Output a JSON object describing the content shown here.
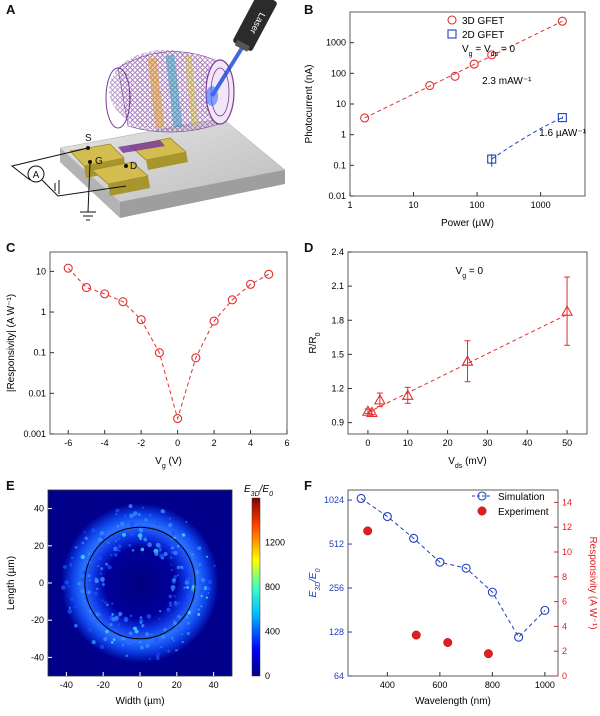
{
  "panel_labels": [
    "A",
    "B",
    "C",
    "D",
    "E",
    "F"
  ],
  "illustration": {
    "laser_label": "Laser",
    "terminals": [
      "S",
      "G",
      "D"
    ],
    "ammeter_symbol": "A",
    "colors": {
      "substrate": "#c9c9c9",
      "electrode": "#c9b84a",
      "graphene": "#7a3a9a",
      "laser": "#1f4fd8"
    }
  },
  "chart_data": [
    {
      "panel": "B",
      "type": "scatter",
      "xscale": "log",
      "yscale": "log",
      "xlabel": "Power (µW)",
      "ylabel": "Photocurrent (nA)",
      "xlim": [
        1,
        5000
      ],
      "ylim": [
        0.01,
        10000
      ],
      "xticks": [
        "1",
        "10",
        "100",
        "1000"
      ],
      "yticks": [
        "0.01",
        "0.1",
        "1",
        "10",
        "100",
        "1000"
      ],
      "legend": [
        "3D GFET",
        "2D GFET"
      ],
      "legend_note": "V_g = V_ds = 0",
      "series": [
        {
          "name": "3D GFET",
          "color": "#e03030",
          "marker": "circle",
          "x": [
            1.7,
            18,
            45,
            90,
            170,
            2200
          ],
          "y": [
            3.5,
            40,
            80,
            200,
            400,
            5000
          ]
        },
        {
          "name": "2D GFET",
          "color": "#2040c0",
          "marker": "square",
          "x": [
            170,
            2200
          ],
          "y": [
            0.16,
            3.6
          ],
          "yerr": [
            0.07,
            0.4
          ]
        }
      ],
      "annotations": [
        {
          "text": "2.3 mAW⁻¹",
          "x": 120,
          "y": 45
        },
        {
          "text": "1.6 µAW⁻¹",
          "x": 950,
          "y": 0.9
        }
      ]
    },
    {
      "panel": "C",
      "type": "scatter",
      "yscale": "log",
      "xlabel": "V_g (V)",
      "ylabel": "|Responsivity| (A W⁻¹)",
      "xlim": [
        -7,
        6
      ],
      "ylim": [
        0.001,
        30
      ],
      "xticks": [
        "-6",
        "-4",
        "-2",
        "0",
        "2",
        "4",
        "6"
      ],
      "yticks": [
        "0.001",
        "0.01",
        "0.1",
        "1",
        "10"
      ],
      "series": [
        {
          "color": "#e03030",
          "marker": "circle",
          "x": [
            -6,
            -5,
            -4,
            -3,
            -2,
            -1,
            0,
            1,
            2,
            3,
            4,
            5
          ],
          "y": [
            12,
            4,
            2.8,
            1.8,
            0.65,
            0.1,
            0.0024,
            0.075,
            0.6,
            2,
            4.8,
            8.5
          ]
        }
      ]
    },
    {
      "panel": "D",
      "type": "scatter",
      "xlabel": "V_ds (mV)",
      "ylabel": "R/R_0",
      "xlim": [
        -5,
        55
      ],
      "ylim": [
        0.8,
        2.4
      ],
      "xticks": [
        "0",
        "10",
        "20",
        "30",
        "40",
        "50"
      ],
      "yticks": [
        "0.9",
        "1.2",
        "1.5",
        "1.8",
        "2.1",
        "2.4"
      ],
      "note": "V_g = 0",
      "series": [
        {
          "color": "#e03030",
          "marker": "triangle",
          "x": [
            0,
            1,
            3,
            10,
            25,
            50
          ],
          "y": [
            1.0,
            0.99,
            1.1,
            1.14,
            1.44,
            1.88
          ],
          "yerr": [
            0.02,
            0.02,
            0.06,
            0.07,
            0.18,
            0.3
          ]
        }
      ]
    },
    {
      "panel": "E",
      "type": "heatmap",
      "xlabel": "Width (µm)",
      "ylabel": "Length (µm)",
      "xlim": [
        -50,
        50
      ],
      "ylim": [
        -50,
        50
      ],
      "xticks": [
        "-40",
        "-20",
        "0",
        "20",
        "40"
      ],
      "yticks": [
        "40",
        "20",
        "0",
        "-20",
        "-40"
      ],
      "colorbar_title": "E_3D/E_0",
      "colorbar_ticks": [
        "0",
        "400",
        "800",
        "1200"
      ],
      "colorbar_range": [
        0,
        1600
      ],
      "ring_radius": 30
    },
    {
      "panel": "F",
      "type": "line",
      "xlabel": "Wavelength (nm)",
      "ylabel": "E_3D/E_0",
      "y2label": "Responsivity (A W⁻¹)",
      "xlim": [
        250,
        1050
      ],
      "ylim": [
        64,
        1200
      ],
      "yscale": "log",
      "y2lim": [
        0,
        15
      ],
      "xticks": [
        "400",
        "600",
        "800",
        "1000"
      ],
      "yticks": [
        "64",
        "128",
        "256",
        "512",
        "1024"
      ],
      "y2ticks": [
        "0",
        "2",
        "4",
        "6",
        "8",
        "10",
        "12",
        "14"
      ],
      "legend": [
        "Simulation",
        "Experiment"
      ],
      "series": [
        {
          "name": "Simulation",
          "color": "#2040c0",
          "marker": "circle",
          "axis": "left",
          "x": [
            300,
            400,
            500,
            600,
            700,
            800,
            900,
            1000
          ],
          "y": [
            1050,
            790,
            560,
            385,
            350,
            240,
            118,
            180
          ]
        },
        {
          "name": "Experiment",
          "color": "#e02020",
          "marker": "filled-circle",
          "axis": "right",
          "x": [
            325,
            510,
            630,
            785
          ],
          "y": [
            11.7,
            3.3,
            2.7,
            1.8
          ]
        }
      ]
    }
  ]
}
